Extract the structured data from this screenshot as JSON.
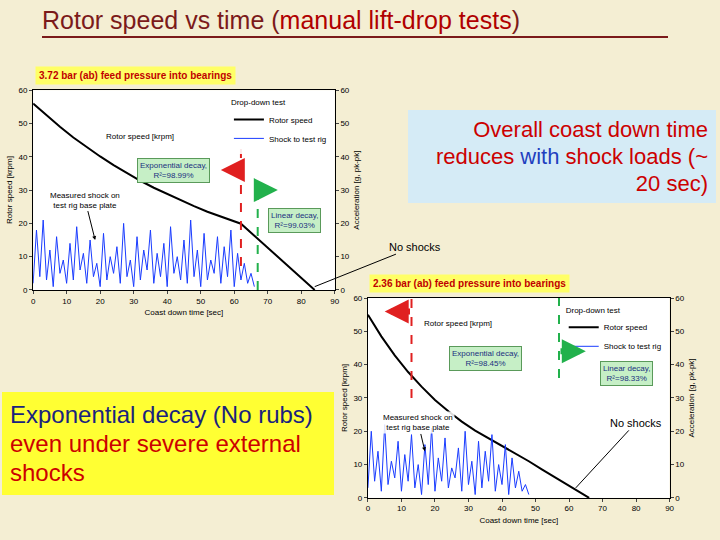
{
  "slide": {
    "title": [
      {
        "text": "Rotor speed vs time (",
        "color": "#7b1a1a"
      },
      {
        "text": "manual lift-drop tests",
        "color": "#b00000"
      },
      {
        "text": ")",
        "color": "#7b1a1a"
      }
    ],
    "callouts": [
      [
        {
          "text": "Overall coast down time reduces ",
          "color": "#cc0000"
        },
        {
          "text": "with",
          "color": "#1f3fbf"
        },
        {
          "text": " shock loads (~ 20 sec)",
          "color": "#cc0000"
        }
      ],
      [
        {
          "text": "Exponential decay (No rubs) ",
          "color": "#1a237e"
        },
        {
          "text": "even under severe external shocks",
          "color": "#cc0000"
        }
      ]
    ]
  },
  "chart_data": [
    {
      "type": "line",
      "title": "3.72 bar (ab) feed pressure into bearings",
      "x_label": "Coast down time [sec]",
      "y_label": "Rotor speed [krpm]",
      "y2_label": "Acceleration [g, pk-pk]",
      "legend": "top right",
      "legend_title": "Drop-down test",
      "grid": false,
      "xlim": [
        0,
        90
      ],
      "xticks": [
        0,
        10,
        20,
        30,
        40,
        50,
        60,
        70,
        80,
        90
      ],
      "ylim": [
        0,
        60
      ],
      "yticks": [
        0,
        10,
        20,
        30,
        40,
        50,
        60
      ],
      "y2lim": [
        0,
        60
      ],
      "y2ticks": [
        0,
        10,
        20,
        30,
        40,
        50,
        60
      ],
      "series": [
        {
          "name": "Rotor speed",
          "color": "#000000",
          "x": [
            0,
            4,
            8,
            12,
            16,
            20,
            24,
            28,
            32,
            36,
            40,
            44,
            48,
            52,
            56,
            60,
            62,
            66,
            70,
            74,
            78,
            82,
            84
          ],
          "values": [
            56,
            52.4,
            49,
            45.8,
            42.9,
            40.1,
            37.5,
            35.1,
            32.8,
            30.7,
            28.8,
            26.9,
            25.2,
            23.5,
            22,
            20.6,
            19.9,
            16.3,
            12.7,
            9,
            5.4,
            1.8,
            0
          ]
        },
        {
          "name": "Shock to test rig",
          "color": "#1a3cff",
          "axis": "y2",
          "x": [
            0,
            1,
            2,
            3,
            4,
            5,
            6,
            7,
            8,
            9,
            10,
            11,
            12,
            13,
            14,
            15,
            16,
            17,
            18,
            19,
            20,
            21,
            22,
            23,
            24,
            25,
            26,
            27,
            28,
            29,
            30,
            31,
            32,
            33,
            34,
            35,
            36,
            37,
            38,
            39,
            40,
            41,
            42,
            43,
            44,
            45,
            46,
            47,
            48,
            49,
            50,
            51,
            52,
            53,
            54,
            55,
            56,
            57,
            58,
            59,
            60,
            61,
            62,
            63,
            64,
            65,
            66
          ],
          "values": [
            2,
            18,
            4,
            21,
            3,
            12,
            1,
            16,
            5,
            9,
            2,
            14,
            3,
            19,
            6,
            11,
            2,
            15,
            4,
            8,
            1,
            17,
            3,
            10,
            5,
            13,
            2,
            20,
            4,
            9,
            1,
            16,
            3,
            12,
            6,
            18,
            2,
            11,
            4,
            14,
            1,
            19,
            5,
            10,
            3,
            15,
            2,
            21,
            4,
            12,
            1,
            17,
            3,
            9,
            5,
            16,
            2,
            13,
            4,
            18,
            1,
            11,
            3,
            8,
            2,
            5,
            1
          ]
        }
      ],
      "vlines": [
        {
          "x": 62,
          "color": "#e02020",
          "line_style": "dash"
        },
        {
          "x": 67,
          "color": "#22b14c",
          "line_style": "dash"
        }
      ],
      "annotations": [
        "Rotor speed [krpm]",
        "Exponential decay,\nR²=98.99%",
        "Linear decay,\nR²=99.03%",
        "Measured shock on\ntest rig base plate",
        "No shocks"
      ]
    },
    {
      "type": "line",
      "title": "2.36 bar (ab) feed pressure into bearings",
      "x_label": "Coast down time [sec]",
      "y_label": "Rotor speed [krpm]",
      "y2_label": "Acceleration [g, pk-pk]",
      "legend": "top right",
      "legend_title": "Drop-down test",
      "grid": false,
      "xlim": [
        0,
        90
      ],
      "xticks": [
        0,
        10,
        20,
        30,
        40,
        50,
        60,
        70,
        80,
        90
      ],
      "ylim": [
        0,
        60
      ],
      "yticks": [
        0,
        10,
        20,
        30,
        40,
        50,
        60
      ],
      "y2lim": [
        0,
        60
      ],
      "y2ticks": [
        0,
        10,
        20,
        30,
        40,
        50,
        60
      ],
      "series": [
        {
          "name": "Rotor speed",
          "color": "#000000",
          "x": [
            0,
            4,
            8,
            12,
            16,
            20,
            24,
            28,
            32,
            36,
            40,
            44,
            48,
            52,
            56,
            60,
            64,
            66
          ],
          "values": [
            55,
            48.5,
            42.8,
            37.8,
            33.4,
            29.4,
            26,
            22.9,
            20.2,
            17.9,
            15.8,
            13.4,
            11,
            8.5,
            6.1,
            3.6,
            1.2,
            0
          ]
        },
        {
          "name": "Shock to test rig",
          "color": "#1a3cff",
          "axis": "y2",
          "x": [
            0,
            1,
            2,
            3,
            4,
            5,
            6,
            7,
            8,
            9,
            10,
            11,
            12,
            13,
            14,
            15,
            16,
            17,
            18,
            19,
            20,
            21,
            22,
            23,
            24,
            25,
            26,
            27,
            28,
            29,
            30,
            31,
            32,
            33,
            34,
            35,
            36,
            37,
            38,
            39,
            40,
            41,
            42,
            43,
            44,
            45,
            46,
            47,
            48
          ],
          "values": [
            3,
            20,
            5,
            14,
            2,
            22,
            4,
            11,
            6,
            17,
            2,
            13,
            5,
            19,
            3,
            10,
            1,
            16,
            4,
            21,
            2,
            12,
            5,
            18,
            3,
            9,
            6,
            15,
            2,
            20,
            4,
            11,
            1,
            17,
            3,
            14,
            5,
            19,
            2,
            10,
            4,
            16,
            1,
            12,
            3,
            8,
            2,
            4,
            1
          ]
        }
      ],
      "vlines": [
        {
          "x": 13,
          "color": "#e02020",
          "line_style": "dash"
        },
        {
          "x": 57,
          "color": "#22b14c",
          "line_style": "dash"
        }
      ],
      "annotations": [
        "Rotor speed [krpm]",
        "Exponential decay,\nR²=98.45%",
        "Linear decay,\nR²=98.33%",
        "Measured shock on\ntest rig base plate",
        "No shocks"
      ]
    }
  ]
}
